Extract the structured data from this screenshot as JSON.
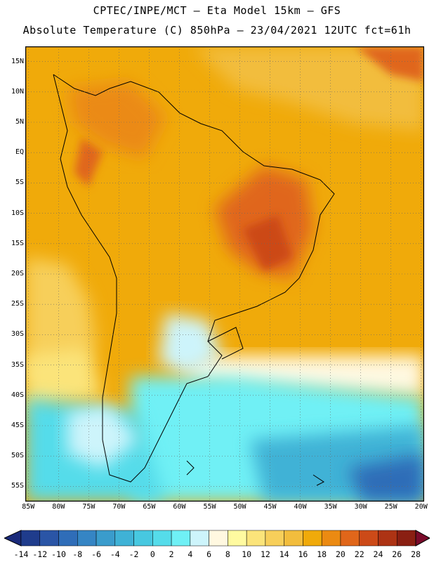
{
  "header": {
    "line1": "CPTEC/INPE/MCT –  Eta Model 15km – GFS",
    "line2": "Absolute Temperature (C) 850hPa – 23/04/2021 12UTC fct=61h"
  },
  "map": {
    "lat_labels": [
      "15N",
      "10N",
      "5N",
      "EQ",
      "5S",
      "10S",
      "15S",
      "20S",
      "25S",
      "30S",
      "35S",
      "40S",
      "45S",
      "50S",
      "55S"
    ],
    "lat_values": [
      15,
      10,
      5,
      0,
      -5,
      -10,
      -15,
      -20,
      -25,
      -30,
      -35,
      -40,
      -45,
      -50,
      -55
    ],
    "lon_labels": [
      "85W",
      "80W",
      "75W",
      "70W",
      "65W",
      "60W",
      "55W",
      "50W",
      "45W",
      "40W",
      "35W",
      "30W",
      "25W",
      "20W"
    ],
    "lon_values": [
      -85,
      -80,
      -75,
      -70,
      -65,
      -60,
      -55,
      -50,
      -45,
      -40,
      -35,
      -30,
      -25,
      -20
    ],
    "extent": {
      "lon_min": -85.5,
      "lon_max": -19.5,
      "lat_min": -57.5,
      "lat_max": 17.5
    },
    "gridlines": true
  },
  "colorbar": {
    "labels": [
      "-14",
      "-12",
      "-10",
      "-8",
      "-6",
      "-4",
      "-2",
      "0",
      "2",
      "4",
      "6",
      "8",
      "10",
      "12",
      "14",
      "16",
      "18",
      "20",
      "22",
      "24",
      "26",
      "28"
    ],
    "colors": [
      "#1f3c8c",
      "#2a55a6",
      "#2f6db8",
      "#3585c4",
      "#3a9ccc",
      "#3fb2d6",
      "#47c8e0",
      "#55dcea",
      "#6ff0f5",
      "#cdf4fb",
      "#fff8e0",
      "#fffaa0",
      "#fbe47a",
      "#f7cf5a",
      "#f2bd3d",
      "#f0aa0a",
      "#eb8a12",
      "#e0661a",
      "#cc4a18",
      "#ad3314",
      "#8a1f12"
    ],
    "under_color": "#1a2a7a",
    "over_color": "#7a0a2a"
  }
}
